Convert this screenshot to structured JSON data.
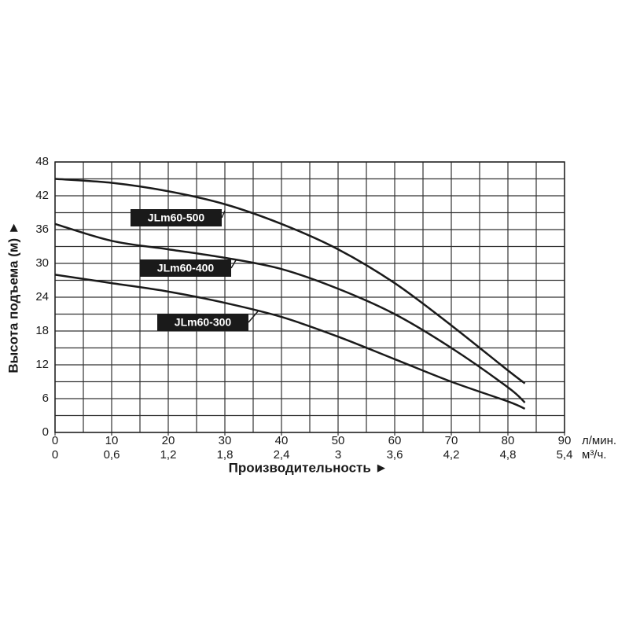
{
  "chart_data": {
    "type": "line",
    "xlabel": "Производительность ►",
    "ylabel": "Высота подъема (м) ►",
    "x_unit": "л/мин.",
    "x2_unit": "м³/ч.",
    "xlim": [
      0,
      90
    ],
    "xticks": [
      0,
      10,
      20,
      30,
      40,
      50,
      60,
      70,
      80,
      90
    ],
    "xminor": [
      5,
      15,
      25,
      35,
      45,
      55,
      65,
      75,
      85
    ],
    "x2lim": [
      0,
      5.4
    ],
    "x2ticks": [
      0,
      {
        "value": 0.6,
        "label": "0,6"
      },
      {
        "value": 1.2,
        "label": "1,2"
      },
      {
        "value": 1.8,
        "label": "1,8"
      },
      {
        "value": 2.4,
        "label": "2,4"
      },
      3,
      {
        "value": 3.6,
        "label": "3,6"
      },
      {
        "value": 4.2,
        "label": "4,2"
      },
      {
        "value": 4.8,
        "label": "4,8"
      },
      {
        "value": 5.4,
        "label": "5,4"
      }
    ],
    "ylim": [
      0,
      48
    ],
    "yticks": [
      0,
      6,
      12,
      18,
      24,
      30,
      36,
      42,
      48
    ],
    "yminor": [
      3,
      9,
      15,
      21,
      27,
      33,
      39,
      45
    ],
    "grid": true,
    "x": [
      0,
      10,
      20,
      30,
      40,
      50,
      60,
      70,
      80,
      83
    ],
    "series": [
      {
        "name": "JLm60-500",
        "color": "#1a1a1a",
        "values": [
          45,
          44.3,
          42.8,
          40.5,
          37,
          32.5,
          26.5,
          19,
          11,
          8.7
        ]
      },
      {
        "name": "JLm60-400",
        "color": "#1a1a1a",
        "values": [
          37,
          34,
          32.5,
          31,
          29,
          25.5,
          21,
          15,
          8,
          5.3
        ]
      },
      {
        "name": "JLm60-300",
        "color": "#1a1a1a",
        "values": [
          28,
          26.5,
          25,
          23,
          20.5,
          17,
          13,
          9,
          5.5,
          4.2
        ]
      }
    ]
  }
}
